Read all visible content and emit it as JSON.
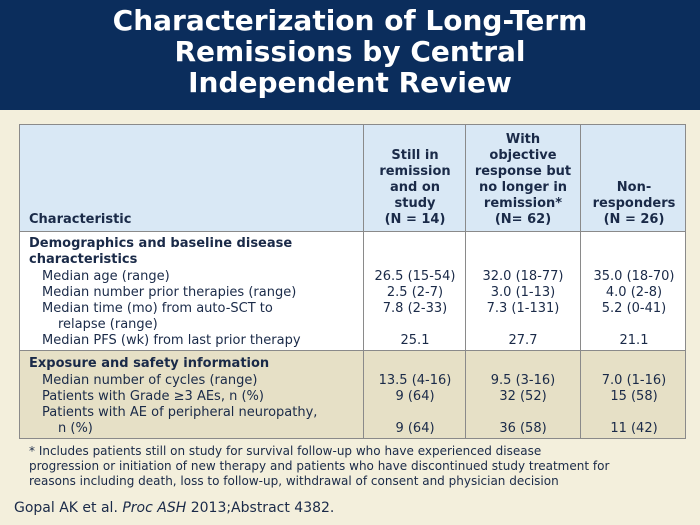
{
  "title_lines": [
    "Characterization of Long-Term",
    "Remissions by Central",
    "Independent Review"
  ],
  "table": {
    "header": {
      "characteristic": "Characteristic",
      "col1": [
        "Still in",
        "remission",
        "and on",
        "study",
        "(N = 14)"
      ],
      "col2": [
        "With",
        "objective",
        "response but",
        "no longer in",
        "remission*",
        "(N= 62)"
      ],
      "col3": [
        "Non-",
        "responders",
        "(N = 26)"
      ]
    },
    "section1": {
      "title_lines": [
        "Demographics and baseline disease",
        "characteristics"
      ],
      "rows": [
        {
          "label": "Median age (range)",
          "v1": "26.5 (15-54)",
          "v2": "32.0 (18-77)",
          "v3": "35.0 (18-70)"
        },
        {
          "label": "Median number prior therapies (range)",
          "v1": "2.5 (2-7)",
          "v2": "3.0 (1-13)",
          "v3": "4.0 (2-8)"
        },
        {
          "label": "Median time (mo) from auto-SCT to",
          "label2": "relapse (range)",
          "v1": "7.8 (2-33)",
          "v2": "7.3 (1-131)",
          "v3": "5.2 (0-41)"
        },
        {
          "label": "Median PFS (wk) from last prior therapy",
          "v1": "25.1",
          "v2": "27.7",
          "v3": "21.1"
        }
      ]
    },
    "section2": {
      "title": "Exposure and safety information",
      "rows": [
        {
          "label": "Median number of cycles (range)",
          "v1": "13.5 (4-16)",
          "v2": "9.5 (3-16)",
          "v3": "7.0 (1-16)"
        },
        {
          "label": "Patients with Grade ≥3 AEs, n (%)",
          "v1": "9 (64)",
          "v2": "32 (52)",
          "v3": "15 (58)"
        },
        {
          "label": "Patients with AE of peripheral neuropathy,",
          "label2": "n (%)",
          "v1": "9 (64)",
          "v2": "36 (58)",
          "v3": "11 (42)"
        }
      ]
    }
  },
  "footnote_lines": [
    "* Includes patients still on study for survival follow-up who have experienced disease",
    "progression or initiation of new therapy and patients who have discontinued study treatment for",
    "reasons including death, loss to follow-up, withdrawal of consent and physician decision"
  ],
  "citation": {
    "authors": "Gopal AK et al. ",
    "journal": "Proc ASH",
    "rest": " 2013;Abstract 4382."
  },
  "colors": {
    "title_band": "#0b2d5c",
    "header_row": "#d9e8f5",
    "section2_bg": "#e6e0c6",
    "background": "#f3efdc"
  }
}
